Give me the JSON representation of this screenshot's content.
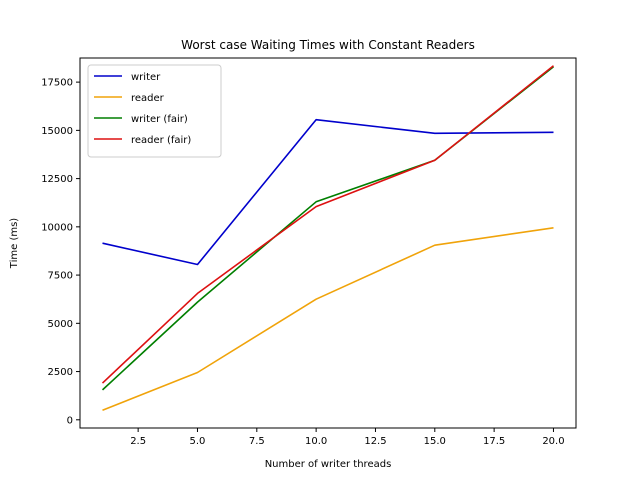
{
  "chart_data": {
    "type": "line",
    "title": "Worst case Waiting Times with Constant Readers",
    "xlabel": "Number of writer threads",
    "ylabel": "Time (ms)",
    "x": [
      1,
      5,
      10,
      15,
      20
    ],
    "xlim": [
      0.05,
      20.95
    ],
    "ylim": [
      -425,
      18750
    ],
    "xticks": [
      2.5,
      5.0,
      7.5,
      10.0,
      12.5,
      15.0,
      17.5,
      20.0
    ],
    "xtick_labels": [
      "2.5",
      "5.0",
      "7.5",
      "10.0",
      "12.5",
      "15.0",
      "17.5",
      "20.0"
    ],
    "yticks": [
      0,
      2500,
      5000,
      7500,
      10000,
      12500,
      15000,
      17500
    ],
    "ytick_labels": [
      "0",
      "2500",
      "5000",
      "7500",
      "10000",
      "12500",
      "15000",
      "17500"
    ],
    "grid": false,
    "legend_position": "top-left",
    "series": [
      {
        "name": "writer",
        "color": "#0000cc",
        "values": [
          9150,
          8050,
          15550,
          14850,
          14900
        ]
      },
      {
        "name": "reader",
        "color": "#f0a30a",
        "values": [
          500,
          2450,
          6250,
          9050,
          9950
        ]
      },
      {
        "name": "writer (fair)",
        "color": "#007f00",
        "values": [
          1550,
          6100,
          11300,
          13450,
          18300
        ]
      },
      {
        "name": "reader (fair)",
        "color": "#dd1111",
        "values": [
          1900,
          6550,
          11050,
          13450,
          18350
        ]
      }
    ]
  }
}
